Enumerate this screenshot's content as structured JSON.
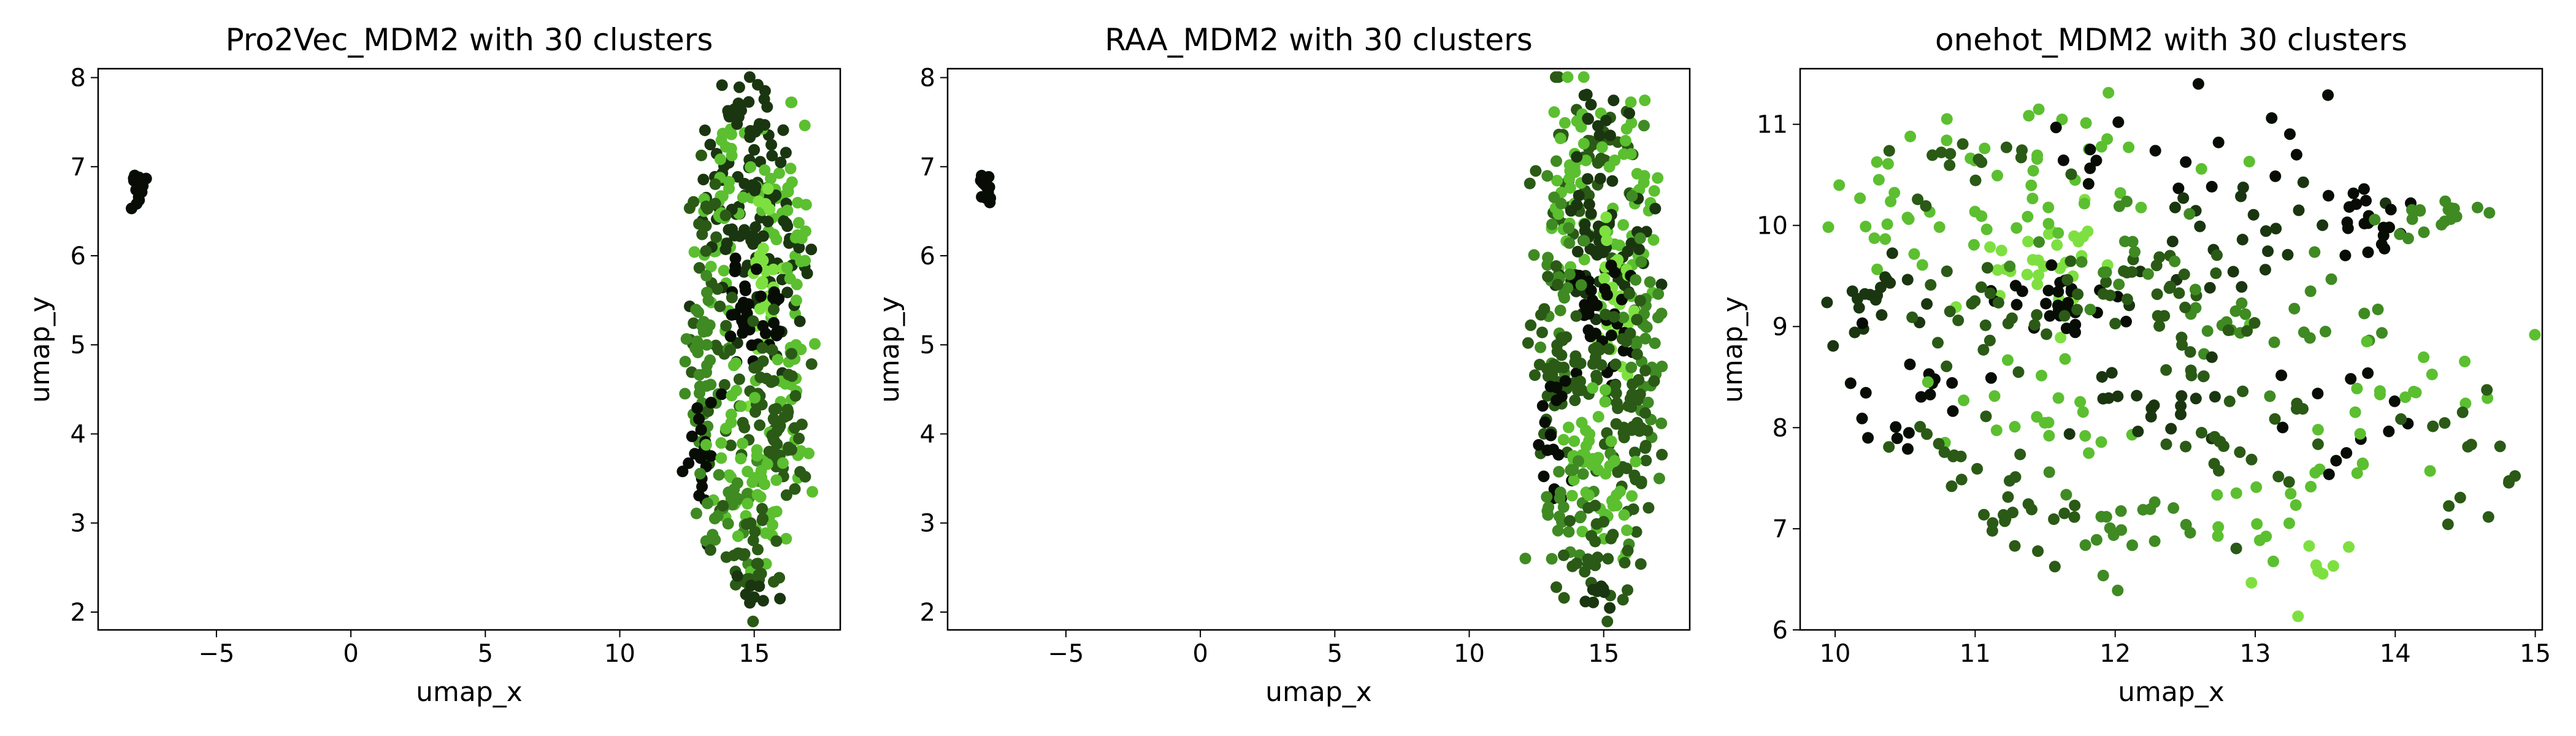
{
  "colors": {
    "palette": [
      "#070d04",
      "#1a3610",
      "#2a5a16",
      "#3f8a23",
      "#5bbf30",
      "#7ee040"
    ],
    "frame": "#000000",
    "background": "#ffffff"
  },
  "chart_data": [
    {
      "type": "scatter",
      "title": "Pro2Vec_MDM2 with 30 clusters",
      "xlabel": "umap_x",
      "ylabel": "umap_y",
      "xlim": [
        -9.4,
        18.2
      ],
      "ylim": [
        1.8,
        8.1
      ],
      "xticks": [
        -5,
        0,
        5,
        10,
        15
      ],
      "xtick_labels": [
        "−5",
        "0",
        "5",
        "10",
        "15"
      ],
      "yticks": [
        2,
        3,
        4,
        5,
        6,
        7,
        8
      ],
      "ytick_labels": [
        "2",
        "3",
        "4",
        "5",
        "6",
        "7",
        "8"
      ],
      "grid": false,
      "clusters": [
        {
          "cx": -7.95,
          "cy": 6.78,
          "sx": 0.18,
          "sy": 0.14,
          "n": 14,
          "color": 0
        },
        {
          "cx": 14.4,
          "cy": 6.95,
          "sx": 0.9,
          "sy": 0.55,
          "n": 45,
          "color": 1
        },
        {
          "cx": 13.9,
          "cy": 6.6,
          "sx": 0.55,
          "sy": 0.6,
          "n": 40,
          "color": 4
        },
        {
          "cx": 16.1,
          "cy": 6.5,
          "sx": 0.5,
          "sy": 0.6,
          "n": 35,
          "color": 4
        },
        {
          "cx": 15.3,
          "cy": 6.1,
          "sx": 0.85,
          "sy": 0.45,
          "n": 60,
          "color": 1
        },
        {
          "cx": 15.4,
          "cy": 5.6,
          "sx": 0.3,
          "sy": 0.45,
          "n": 30,
          "color": 5
        },
        {
          "cx": 14.5,
          "cy": 5.45,
          "sx": 0.35,
          "sy": 0.4,
          "n": 20,
          "color": 0
        },
        {
          "cx": 15.5,
          "cy": 5.1,
          "sx": 0.3,
          "sy": 0.35,
          "n": 15,
          "color": 0
        },
        {
          "cx": 13.3,
          "cy": 5.8,
          "sx": 0.4,
          "sy": 0.6,
          "n": 25,
          "color": 2
        },
        {
          "cx": 13.2,
          "cy": 4.8,
          "sx": 0.45,
          "sy": 0.55,
          "n": 40,
          "color": 3
        },
        {
          "cx": 16.5,
          "cy": 4.9,
          "sx": 0.35,
          "sy": 0.8,
          "n": 35,
          "color": 4
        },
        {
          "cx": 15.3,
          "cy": 4.4,
          "sx": 0.85,
          "sy": 0.55,
          "n": 50,
          "color": 2
        },
        {
          "cx": 13.1,
          "cy": 3.8,
          "sx": 0.35,
          "sy": 0.4,
          "n": 20,
          "color": 0
        },
        {
          "cx": 14.3,
          "cy": 3.9,
          "sx": 0.5,
          "sy": 0.4,
          "n": 25,
          "color": 4
        },
        {
          "cx": 16.1,
          "cy": 3.8,
          "sx": 0.45,
          "sy": 0.45,
          "n": 25,
          "color": 2
        },
        {
          "cx": 13.8,
          "cy": 3.2,
          "sx": 0.6,
          "sy": 0.3,
          "n": 25,
          "color": 3
        },
        {
          "cx": 15.4,
          "cy": 3.3,
          "sx": 0.6,
          "sy": 0.35,
          "n": 25,
          "color": 4
        },
        {
          "cx": 14.6,
          "cy": 2.6,
          "sx": 0.7,
          "sy": 0.3,
          "n": 30,
          "color": 2
        },
        {
          "cx": 15.0,
          "cy": 2.2,
          "sx": 0.45,
          "sy": 0.12,
          "n": 8,
          "color": 1
        },
        {
          "cx": 14.9,
          "cy": 7.55,
          "sx": 0.55,
          "sy": 0.15,
          "n": 12,
          "color": 1
        }
      ]
    },
    {
      "type": "scatter",
      "title": "RAA_MDM2 with 30 clusters",
      "xlabel": "umap_x",
      "ylabel": "umap_y",
      "xlim": [
        -9.4,
        18.2
      ],
      "ylim": [
        1.8,
        8.1
      ],
      "xticks": [
        -5,
        0,
        5,
        10,
        15
      ],
      "xtick_labels": [
        "−5",
        "0",
        "5",
        "10",
        "15"
      ],
      "yticks": [
        2,
        3,
        4,
        5,
        6,
        7,
        8
      ],
      "ytick_labels": [
        "2",
        "3",
        "4",
        "5",
        "6",
        "7",
        "8"
      ],
      "grid": false,
      "clusters": [
        {
          "cx": -7.95,
          "cy": 6.78,
          "sx": 0.18,
          "sy": 0.14,
          "n": 14,
          "color": 0
        },
        {
          "cx": 14.4,
          "cy": 6.95,
          "sx": 0.9,
          "sy": 0.55,
          "n": 45,
          "color": 2
        },
        {
          "cx": 13.9,
          "cy": 6.6,
          "sx": 0.55,
          "sy": 0.6,
          "n": 40,
          "color": 4
        },
        {
          "cx": 16.1,
          "cy": 6.5,
          "sx": 0.5,
          "sy": 0.6,
          "n": 35,
          "color": 4
        },
        {
          "cx": 15.3,
          "cy": 6.1,
          "sx": 0.85,
          "sy": 0.45,
          "n": 60,
          "color": 1
        },
        {
          "cx": 15.4,
          "cy": 5.6,
          "sx": 0.3,
          "sy": 0.45,
          "n": 30,
          "color": 5
        },
        {
          "cx": 14.5,
          "cy": 5.45,
          "sx": 0.35,
          "sy": 0.4,
          "n": 20,
          "color": 0
        },
        {
          "cx": 15.5,
          "cy": 5.1,
          "sx": 0.3,
          "sy": 0.35,
          "n": 15,
          "color": 0
        },
        {
          "cx": 13.3,
          "cy": 5.8,
          "sx": 0.4,
          "sy": 0.6,
          "n": 25,
          "color": 3
        },
        {
          "cx": 13.2,
          "cy": 4.8,
          "sx": 0.45,
          "sy": 0.55,
          "n": 40,
          "color": 2
        },
        {
          "cx": 16.5,
          "cy": 4.9,
          "sx": 0.35,
          "sy": 0.8,
          "n": 35,
          "color": 3
        },
        {
          "cx": 15.3,
          "cy": 4.4,
          "sx": 0.85,
          "sy": 0.55,
          "n": 50,
          "color": 2
        },
        {
          "cx": 13.1,
          "cy": 3.8,
          "sx": 0.35,
          "sy": 0.4,
          "n": 20,
          "color": 0
        },
        {
          "cx": 14.3,
          "cy": 3.9,
          "sx": 0.5,
          "sy": 0.4,
          "n": 25,
          "color": 4
        },
        {
          "cx": 16.1,
          "cy": 3.8,
          "sx": 0.45,
          "sy": 0.45,
          "n": 25,
          "color": 2
        },
        {
          "cx": 13.8,
          "cy": 3.2,
          "sx": 0.6,
          "sy": 0.3,
          "n": 25,
          "color": 3
        },
        {
          "cx": 15.4,
          "cy": 3.3,
          "sx": 0.6,
          "sy": 0.35,
          "n": 25,
          "color": 4
        },
        {
          "cx": 14.6,
          "cy": 2.6,
          "sx": 0.7,
          "sy": 0.3,
          "n": 30,
          "color": 2
        },
        {
          "cx": 15.0,
          "cy": 2.2,
          "sx": 0.45,
          "sy": 0.12,
          "n": 8,
          "color": 1
        },
        {
          "cx": 14.9,
          "cy": 7.55,
          "sx": 0.55,
          "sy": 0.15,
          "n": 12,
          "color": 1
        }
      ]
    },
    {
      "type": "scatter",
      "title": "onehot_MDM2 with 30 clusters",
      "xlabel": "umap_x",
      "ylabel": "umap_y",
      "xlim": [
        9.75,
        15.05
      ],
      "ylim": [
        6.0,
        11.55
      ],
      "xticks": [
        10,
        11,
        12,
        13,
        14,
        15
      ],
      "xtick_labels": [
        "10",
        "11",
        "12",
        "13",
        "14",
        "15"
      ],
      "yticks": [
        6,
        7,
        8,
        9,
        10,
        11
      ],
      "ytick_labels": [
        "6",
        "7",
        "8",
        "9",
        "10",
        "11"
      ],
      "grid": false,
      "clusters": [
        {
          "cx": 11.5,
          "cy": 9.6,
          "sx": 0.25,
          "sy": 0.25,
          "n": 30,
          "color": 5
        },
        {
          "cx": 11.5,
          "cy": 9.2,
          "sx": 0.2,
          "sy": 0.15,
          "n": 30,
          "color": 0
        },
        {
          "cx": 11.5,
          "cy": 10.6,
          "sx": 0.6,
          "sy": 0.35,
          "n": 30,
          "color": 4
        },
        {
          "cx": 12.4,
          "cy": 10.7,
          "sx": 0.5,
          "sy": 0.35,
          "n": 20,
          "color": 0
        },
        {
          "cx": 12.8,
          "cy": 9.8,
          "sx": 0.4,
          "sy": 0.35,
          "n": 25,
          "color": 1
        },
        {
          "cx": 10.7,
          "cy": 10.0,
          "sx": 0.4,
          "sy": 0.35,
          "n": 25,
          "color": 4
        },
        {
          "cx": 10.8,
          "cy": 10.6,
          "sx": 0.3,
          "sy": 0.3,
          "n": 15,
          "color": 2
        },
        {
          "cx": 10.3,
          "cy": 9.2,
          "sx": 0.25,
          "sy": 0.35,
          "n": 20,
          "color": 1
        },
        {
          "cx": 10.5,
          "cy": 8.4,
          "sx": 0.3,
          "sy": 0.3,
          "n": 18,
          "color": 0
        },
        {
          "cx": 11.0,
          "cy": 9.2,
          "sx": 0.3,
          "sy": 0.3,
          "n": 20,
          "color": 2
        },
        {
          "cx": 12.1,
          "cy": 9.3,
          "sx": 0.4,
          "sy": 0.3,
          "n": 30,
          "color": 2
        },
        {
          "cx": 13.1,
          "cy": 9.0,
          "sx": 0.45,
          "sy": 0.3,
          "n": 25,
          "color": 3
        },
        {
          "cx": 11.5,
          "cy": 8.1,
          "sx": 0.4,
          "sy": 0.3,
          "n": 20,
          "color": 4
        },
        {
          "cx": 12.3,
          "cy": 8.1,
          "sx": 0.3,
          "sy": 0.3,
          "n": 20,
          "color": 1
        },
        {
          "cx": 11.2,
          "cy": 7.3,
          "sx": 0.35,
          "sy": 0.35,
          "n": 20,
          "color": 2
        },
        {
          "cx": 12.1,
          "cy": 7.1,
          "sx": 0.35,
          "sy": 0.35,
          "n": 20,
          "color": 3
        },
        {
          "cx": 12.8,
          "cy": 7.8,
          "sx": 0.3,
          "sy": 0.45,
          "n": 20,
          "color": 2
        },
        {
          "cx": 13.3,
          "cy": 7.2,
          "sx": 0.35,
          "sy": 0.35,
          "n": 18,
          "color": 4
        },
        {
          "cx": 13.6,
          "cy": 8.1,
          "sx": 0.3,
          "sy": 0.25,
          "n": 12,
          "color": 0
        },
        {
          "cx": 14.1,
          "cy": 8.4,
          "sx": 0.35,
          "sy": 0.35,
          "n": 18,
          "color": 4
        },
        {
          "cx": 14.5,
          "cy": 7.8,
          "sx": 0.25,
          "sy": 0.4,
          "n": 15,
          "color": 2
        },
        {
          "cx": 13.3,
          "cy": 6.5,
          "sx": 0.3,
          "sy": 0.2,
          "n": 8,
          "color": 5
        },
        {
          "cx": 13.8,
          "cy": 10.1,
          "sx": 0.15,
          "sy": 0.18,
          "n": 20,
          "color": 0
        },
        {
          "cx": 14.3,
          "cy": 10.15,
          "sx": 0.22,
          "sy": 0.18,
          "n": 18,
          "color": 3
        },
        {
          "cx": 12.0,
          "cy": 9.7,
          "sx": 0.35,
          "sy": 0.25,
          "n": 15,
          "color": 3
        },
        {
          "cx": 10.9,
          "cy": 7.8,
          "sx": 0.3,
          "sy": 0.3,
          "n": 12,
          "color": 2
        },
        {
          "cx": 12.7,
          "cy": 8.7,
          "sx": 0.3,
          "sy": 0.25,
          "n": 12,
          "color": 2
        }
      ]
    }
  ]
}
